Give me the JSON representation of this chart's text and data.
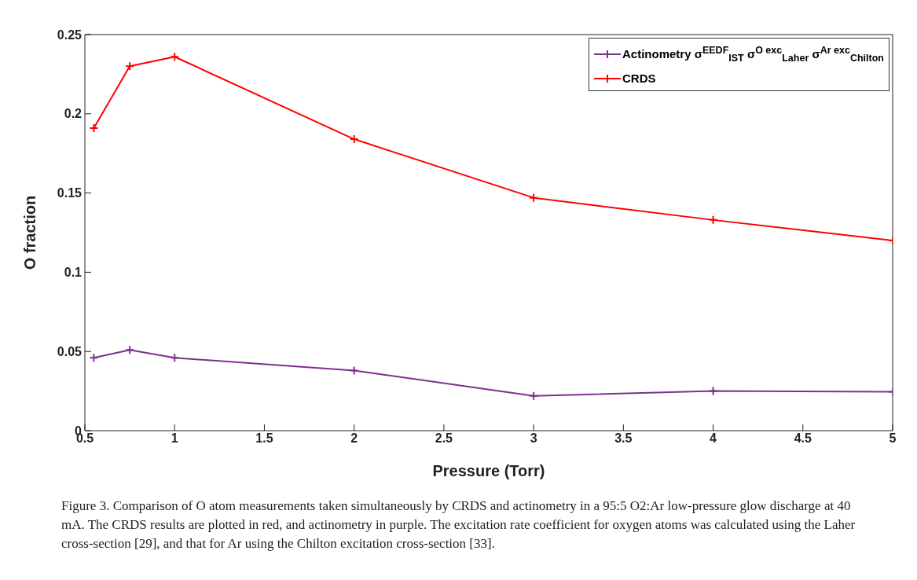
{
  "chart_data": {
    "type": "line",
    "xlabel": "Pressure (Torr)",
    "ylabel": "O fraction",
    "x": [
      0.55,
      0.75,
      1,
      2,
      3,
      4,
      5
    ],
    "series": [
      {
        "name": "Actinometry σ$^{EEDF}$$_{IST}$ σ$^{O exc}$$_{Laher}$ σ$^{Ar exc}$$_{Chilton}$",
        "color": "#7e2f8e",
        "values": [
          0.046,
          0.051,
          0.046,
          0.038,
          0.022,
          0.025,
          0.0245
        ]
      },
      {
        "name": "CRDS",
        "color": "#ff0000",
        "values": [
          0.191,
          0.23,
          0.236,
          0.184,
          0.147,
          0.133,
          0.12
        ]
      }
    ],
    "xlim": [
      0.5,
      5
    ],
    "xticks": [
      0.5,
      1,
      1.5,
      2,
      2.5,
      3,
      3.5,
      4,
      4.5,
      5
    ],
    "ylim": [
      0,
      0.25
    ],
    "yticks": [
      0,
      0.05,
      0.1,
      0.15,
      0.2,
      0.25
    ],
    "grid": false,
    "legend": "top right",
    "marker": "cross",
    "line_style": "solid",
    "annotations": [
      "Figure 3. Comparison of O atom measurements taken simultaneously by CRDS and actinometry in a 95:5 O2:Ar low-pressure glow discharge at 40 mA. The CRDS results are plotted in red, and actinometry in purple. The excitation rate coefficient for oxygen atoms was calculated using the Laher cross-section [29], and that for Ar using the Chilton excitation cross-section [33]."
    ]
  }
}
